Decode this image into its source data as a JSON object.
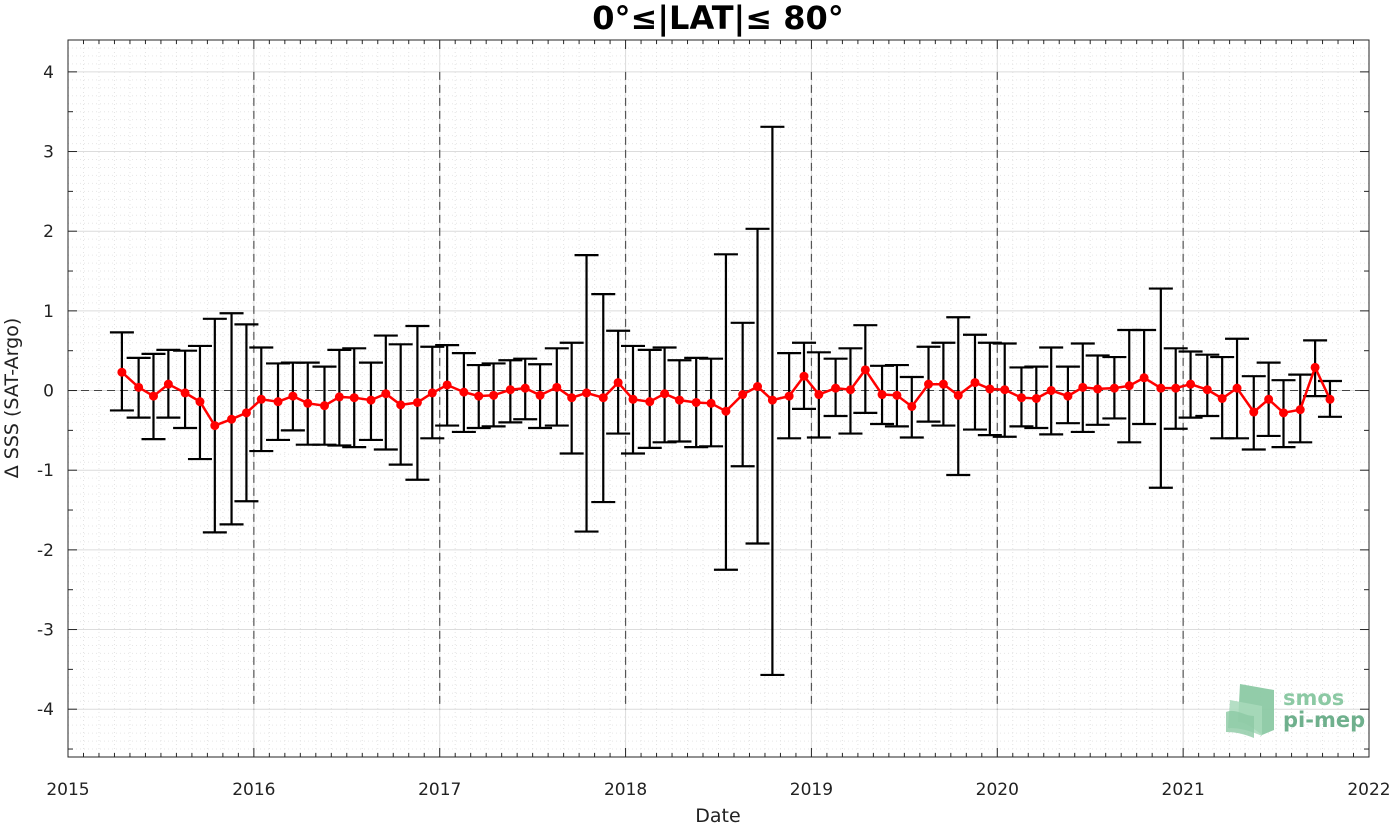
{
  "chart_data": {
    "type": "line",
    "title": "0°≤|LAT|≤ 80°",
    "xlabel": "Date",
    "ylabel": "Δ SSS (SAT-Argo)",
    "xlim": [
      2015,
      2022
    ],
    "ylim": [
      -4.6,
      4.4
    ],
    "x_ticks": [
      2015,
      2016,
      2017,
      2018,
      2019,
      2020,
      2021,
      2022
    ],
    "y_ticks": [
      -4,
      -3,
      -2,
      -1,
      0,
      1,
      2,
      3,
      4
    ],
    "grid": true,
    "year_markers": [
      2016,
      2017,
      2018,
      2019,
      2020,
      2021
    ],
    "series": [
      {
        "color": "#ff0000",
        "marker": "circle",
        "errorbar_color": "#000000",
        "x": [
          2015.29,
          2015.38,
          2015.46,
          2015.54,
          2015.63,
          2015.71,
          2015.79,
          2015.88,
          2015.96,
          2016.04,
          2016.13,
          2016.21,
          2016.29,
          2016.38,
          2016.46,
          2016.54,
          2016.63,
          2016.71,
          2016.79,
          2016.88,
          2016.96,
          2017.04,
          2017.13,
          2017.21,
          2017.29,
          2017.38,
          2017.46,
          2017.54,
          2017.63,
          2017.71,
          2017.79,
          2017.88,
          2017.96,
          2018.04,
          2018.13,
          2018.21,
          2018.29,
          2018.38,
          2018.46,
          2018.54,
          2018.63,
          2018.71,
          2018.79,
          2018.88,
          2018.96,
          2019.04,
          2019.13,
          2019.21,
          2019.29,
          2019.38,
          2019.46,
          2019.54,
          2019.63,
          2019.71,
          2019.79,
          2019.88,
          2019.96,
          2020.04,
          2020.13,
          2020.21,
          2020.29,
          2020.38,
          2020.46,
          2020.54,
          2020.63,
          2020.71,
          2020.79,
          2020.88,
          2020.96,
          2021.04,
          2021.13,
          2021.21,
          2021.29,
          2021.38,
          2021.46,
          2021.54,
          2021.63,
          2021.71,
          2021.79
        ],
        "y": [
          0.23,
          0.04,
          -0.07,
          0.08,
          -0.03,
          -0.14,
          -0.44,
          -0.36,
          -0.28,
          -0.11,
          -0.14,
          -0.07,
          -0.16,
          -0.19,
          -0.08,
          -0.09,
          -0.12,
          -0.04,
          -0.18,
          -0.15,
          -0.03,
          0.07,
          -0.02,
          -0.07,
          -0.06,
          0.01,
          0.03,
          -0.06,
          0.04,
          -0.09,
          -0.03,
          -0.09,
          0.1,
          -0.11,
          -0.14,
          -0.04,
          -0.12,
          -0.15,
          -0.16,
          -0.26,
          -0.05,
          0.05,
          -0.12,
          -0.07,
          0.18,
          -0.05,
          0.03,
          0.01,
          0.26,
          -0.05,
          -0.06,
          -0.2,
          0.08,
          0.08,
          -0.06,
          0.1,
          0.02,
          0.01,
          -0.09,
          -0.1,
          0.0,
          -0.07,
          0.04,
          0.02,
          0.03,
          0.06,
          0.16,
          0.03,
          0.03,
          0.08,
          0.01,
          -0.1,
          0.03,
          -0.27,
          -0.11,
          -0.28,
          -0.24,
          0.29,
          -0.11
        ],
        "upper": [
          0.73,
          0.41,
          0.46,
          0.51,
          0.5,
          0.56,
          0.9,
          0.97,
          0.83,
          0.54,
          0.34,
          0.35,
          0.35,
          0.3,
          0.51,
          0.53,
          0.35,
          0.69,
          0.58,
          0.81,
          0.55,
          0.57,
          0.47,
          0.32,
          0.34,
          0.38,
          0.4,
          0.33,
          0.53,
          0.6,
          1.7,
          1.21,
          0.75,
          0.56,
          0.51,
          0.54,
          0.38,
          0.41,
          0.4,
          1.71,
          0.85,
          2.03,
          3.31,
          0.47,
          0.6,
          0.48,
          0.4,
          0.53,
          0.82,
          0.31,
          0.32,
          0.17,
          0.55,
          0.6,
          0.92,
          0.7,
          0.6,
          0.59,
          0.29,
          0.3,
          0.54,
          0.3,
          0.59,
          0.44,
          0.42,
          0.76,
          0.76,
          1.28,
          0.53,
          0.49,
          0.45,
          0.42,
          0.65,
          0.18,
          0.35,
          0.13,
          0.2,
          0.63,
          0.12
        ],
        "lower": [
          -0.25,
          -0.34,
          -0.61,
          -0.34,
          -0.47,
          -0.86,
          -1.78,
          -1.68,
          -1.39,
          -0.76,
          -0.62,
          -0.5,
          -0.68,
          -0.68,
          -0.69,
          -0.71,
          -0.62,
          -0.74,
          -0.93,
          -1.12,
          -0.6,
          -0.44,
          -0.52,
          -0.47,
          -0.45,
          -0.4,
          -0.36,
          -0.47,
          -0.44,
          -0.79,
          -1.77,
          -1.4,
          -0.54,
          -0.79,
          -0.72,
          -0.65,
          -0.64,
          -0.71,
          -0.7,
          -2.25,
          -0.95,
          -1.92,
          -3.57,
          -0.6,
          -0.23,
          -0.59,
          -0.32,
          -0.54,
          -0.28,
          -0.42,
          -0.45,
          -0.59,
          -0.39,
          -0.44,
          -1.06,
          -0.49,
          -0.56,
          -0.58,
          -0.45,
          -0.47,
          -0.55,
          -0.41,
          -0.52,
          -0.43,
          -0.35,
          -0.65,
          -0.42,
          -1.22,
          -0.48,
          -0.34,
          -0.32,
          -0.6,
          -0.6,
          -0.74,
          -0.57,
          -0.71,
          -0.65,
          -0.07,
          -0.33
        ]
      }
    ]
  },
  "logo": {
    "line1": "smos",
    "line2": "pi-mep",
    "colors": [
      "#8cc9a4",
      "#6fb08d",
      "#a8d9bb"
    ]
  }
}
